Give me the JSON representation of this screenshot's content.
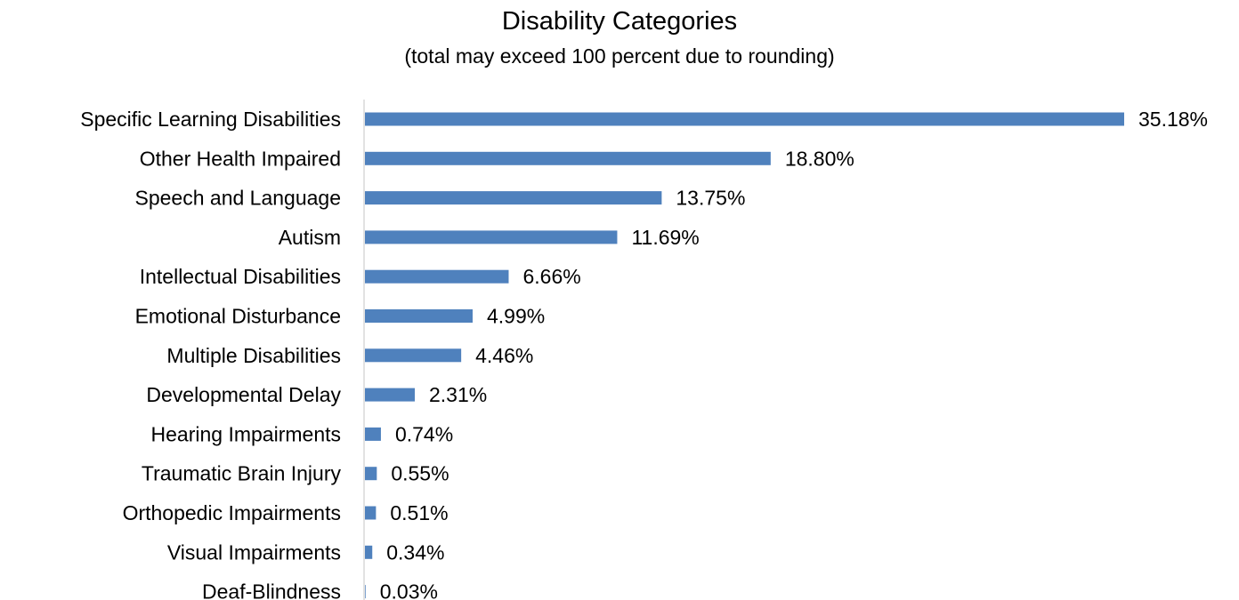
{
  "chart_data": {
    "type": "bar",
    "orientation": "horizontal",
    "title": "Disability Categories",
    "subtitle": "(total may exceed 100 percent due to rounding)",
    "bar_color": "#4f81bd",
    "axis_color": "#d9d9d9",
    "xlim": [
      0,
      35.18
    ],
    "grid": false,
    "legend": "none",
    "categories": [
      "Specific Learning Disabilities",
      "Other Health Impaired",
      "Speech and Language",
      "Autism",
      "Intellectual Disabilities",
      "Emotional Disturbance",
      "Multiple Disabilities",
      "Developmental Delay",
      "Hearing Impairments",
      "Traumatic Brain Injury",
      "Orthopedic Impairments",
      "Visual Impairments",
      "Deaf-Blindness"
    ],
    "values": [
      35.18,
      18.8,
      13.75,
      11.69,
      6.66,
      4.99,
      4.46,
      2.31,
      0.74,
      0.55,
      0.51,
      0.34,
      0.03
    ],
    "value_labels": [
      "35.18%",
      "18.80%",
      "13.75%",
      "11.69%",
      "6.66%",
      "4.99%",
      "4.46%",
      "2.31%",
      "0.74%",
      "0.55%",
      "0.51%",
      "0.34%",
      "0.03%"
    ]
  }
}
